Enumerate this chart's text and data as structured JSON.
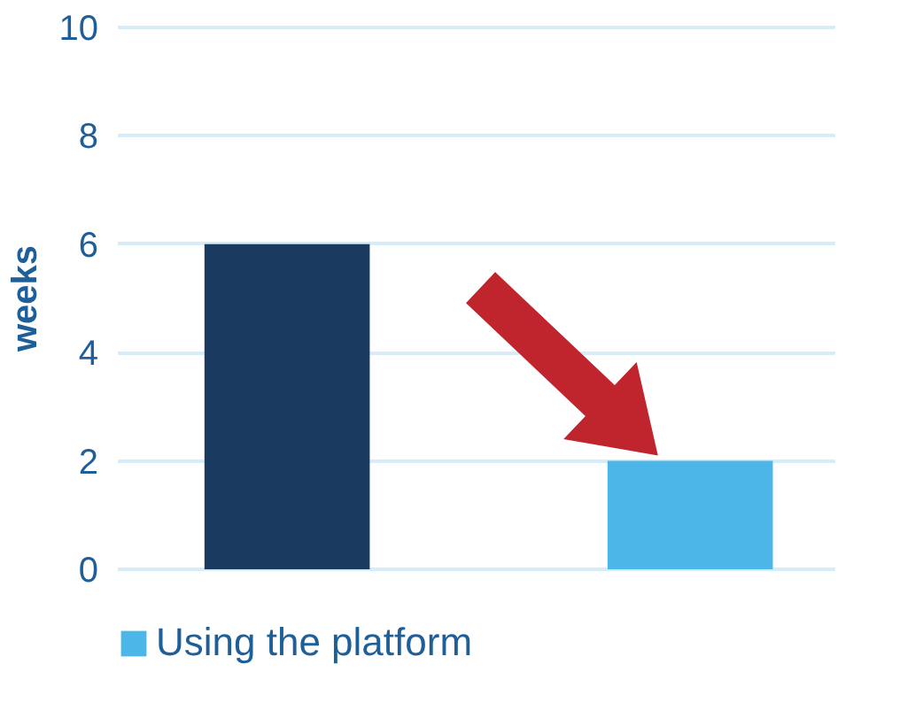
{
  "chart_data": {
    "type": "bar",
    "ylabel": "weeks",
    "categories": [
      null,
      null
    ],
    "series": [
      {
        "color": "#1b3a60",
        "values": [
          6,
          null
        ]
      },
      {
        "name": "Using the platform",
        "color": "#4cb6e8",
        "values": [
          null,
          2
        ]
      }
    ],
    "ylim": [
      0,
      10
    ],
    "yticks": [
      0,
      2,
      4,
      6,
      8,
      10
    ],
    "grid": "y",
    "legend": "bottom",
    "tick_labels": "y"
  }
}
